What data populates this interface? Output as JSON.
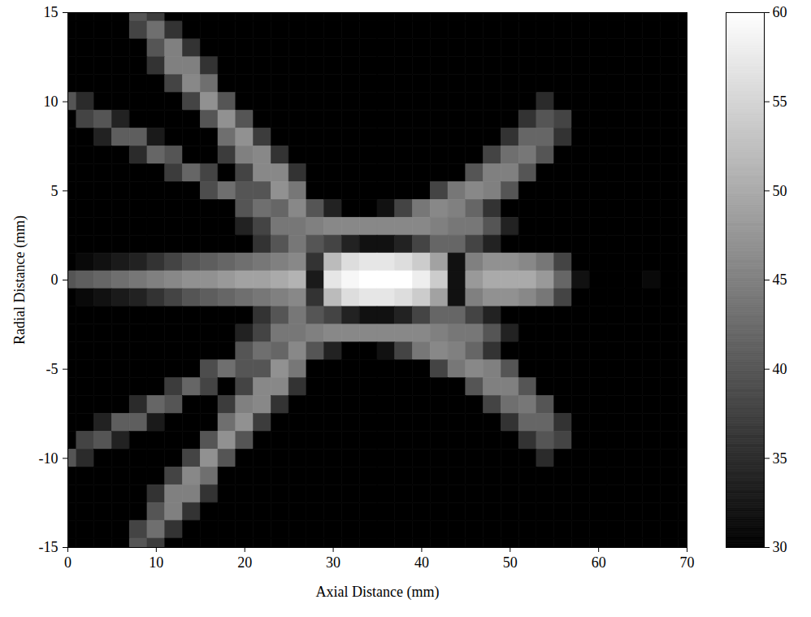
{
  "chart_data": {
    "type": "heatmap",
    "xlabel": "Axial Distance (mm)",
    "ylabel": "Radial Distance (mm)",
    "xlim": [
      0,
      70
    ],
    "ylim": [
      -15,
      15
    ],
    "xticks": [
      0,
      10,
      20,
      30,
      40,
      50,
      60,
      70
    ],
    "yticks": [
      -15,
      -10,
      -5,
      0,
      5,
      10,
      15
    ],
    "x": [
      0,
      2,
      4,
      6,
      8,
      10,
      12,
      14,
      16,
      18,
      20,
      22,
      24,
      26,
      28,
      30,
      32,
      34,
      36,
      38,
      40,
      42,
      44,
      46,
      48,
      50,
      52,
      54,
      56,
      58,
      60,
      62,
      64,
      66,
      68,
      70
    ],
    "y": [
      15,
      14,
      13,
      12,
      11,
      10,
      9,
      8,
      7,
      6,
      5,
      4,
      3,
      2,
      1,
      0,
      -1,
      -2,
      -3,
      -4,
      -5,
      -6,
      -7,
      -8,
      -9,
      -10,
      -11,
      -12,
      -13,
      -14,
      -15
    ],
    "z": [
      [
        30,
        30,
        30,
        30,
        40,
        37,
        30,
        30,
        30,
        30,
        30,
        30,
        30,
        30,
        30,
        30,
        30,
        30,
        30,
        30,
        30,
        30,
        30,
        30,
        30,
        30,
        30,
        30,
        30,
        30,
        30,
        30,
        30,
        30,
        30,
        30
      ],
      [
        30,
        30,
        30,
        30,
        38,
        43,
        36,
        30,
        30,
        30,
        30,
        30,
        30,
        30,
        30,
        30,
        30,
        30,
        30,
        30,
        30,
        30,
        30,
        30,
        30,
        30,
        30,
        30,
        30,
        30,
        30,
        30,
        30,
        30,
        30,
        30
      ],
      [
        30,
        30,
        30,
        30,
        30,
        40,
        45,
        36,
        30,
        30,
        30,
        30,
        30,
        30,
        30,
        30,
        30,
        30,
        30,
        30,
        30,
        30,
        30,
        30,
        30,
        30,
        30,
        30,
        30,
        30,
        30,
        30,
        30,
        30,
        30,
        30
      ],
      [
        30,
        30,
        30,
        30,
        30,
        36,
        45,
        45,
        36,
        30,
        30,
        30,
        30,
        30,
        30,
        30,
        30,
        30,
        30,
        30,
        30,
        30,
        30,
        30,
        30,
        30,
        30,
        30,
        30,
        30,
        30,
        30,
        30,
        30,
        30,
        30
      ],
      [
        30,
        30,
        30,
        30,
        30,
        30,
        38,
        46,
        43,
        30,
        30,
        30,
        30,
        30,
        30,
        30,
        30,
        30,
        30,
        30,
        30,
        30,
        30,
        30,
        30,
        30,
        30,
        30,
        30,
        30,
        30,
        30,
        30,
        30,
        30,
        30
      ],
      [
        40,
        35,
        30,
        30,
        30,
        30,
        30,
        38,
        47,
        40,
        30,
        30,
        30,
        30,
        30,
        30,
        30,
        30,
        30,
        30,
        30,
        30,
        30,
        30,
        30,
        30,
        30,
        35,
        30,
        30,
        30,
        30,
        30,
        30,
        30,
        30
      ],
      [
        30,
        38,
        40,
        34,
        30,
        30,
        30,
        30,
        40,
        47,
        40,
        30,
        30,
        30,
        30,
        30,
        30,
        30,
        30,
        30,
        30,
        30,
        30,
        30,
        30,
        30,
        36,
        40,
        38,
        30,
        30,
        30,
        30,
        30,
        30,
        30
      ],
      [
        30,
        30,
        34,
        41,
        41,
        33,
        30,
        30,
        30,
        43,
        47,
        37,
        30,
        30,
        30,
        30,
        30,
        30,
        30,
        30,
        30,
        30,
        30,
        30,
        30,
        36,
        42,
        42,
        36,
        30,
        30,
        30,
        30,
        30,
        30,
        30
      ],
      [
        30,
        30,
        30,
        30,
        35,
        42,
        40,
        30,
        30,
        37,
        45,
        46,
        36,
        30,
        30,
        30,
        30,
        30,
        30,
        30,
        30,
        30,
        30,
        30,
        38,
        43,
        44,
        40,
        30,
        30,
        30,
        30,
        30,
        30,
        30,
        30
      ],
      [
        30,
        30,
        30,
        30,
        30,
        30,
        37,
        42,
        38,
        30,
        38,
        46,
        46,
        36,
        30,
        30,
        30,
        30,
        30,
        30,
        30,
        30,
        30,
        40,
        45,
        45,
        40,
        30,
        30,
        30,
        30,
        30,
        30,
        30,
        30,
        30
      ],
      [
        30,
        30,
        30,
        30,
        30,
        30,
        30,
        30,
        39,
        43,
        40,
        40,
        47,
        44,
        30,
        30,
        30,
        30,
        30,
        30,
        30,
        38,
        44,
        46,
        45,
        40,
        30,
        30,
        30,
        30,
        30,
        30,
        30,
        30,
        30,
        30
      ],
      [
        30,
        30,
        30,
        30,
        30,
        30,
        30,
        30,
        30,
        30,
        40,
        43,
        42,
        46,
        40,
        34,
        30,
        30,
        32,
        38,
        44,
        46,
        45,
        42,
        36,
        30,
        30,
        30,
        30,
        30,
        30,
        30,
        30,
        30,
        30,
        30
      ],
      [
        30,
        30,
        30,
        30,
        30,
        30,
        30,
        30,
        30,
        30,
        34,
        38,
        44,
        44,
        45,
        46,
        46,
        46,
        46,
        46,
        46,
        45,
        44,
        44,
        40,
        34,
        30,
        30,
        30,
        30,
        30,
        30,
        30,
        30,
        30,
        30
      ],
      [
        30,
        30,
        30,
        30,
        30,
        30,
        30,
        30,
        30,
        30,
        30,
        36,
        40,
        44,
        40,
        38,
        34,
        32,
        32,
        34,
        38,
        42,
        42,
        38,
        34,
        30,
        30,
        30,
        30,
        30,
        30,
        30,
        30,
        30,
        30,
        30
      ],
      [
        30,
        31,
        32,
        33,
        34,
        36,
        38,
        40,
        41,
        42,
        43,
        44,
        45,
        46,
        36,
        52,
        56,
        57,
        57,
        56,
        54,
        49,
        32,
        45,
        47,
        47,
        46,
        44,
        38,
        30,
        30,
        30,
        30,
        30,
        30,
        30
      ],
      [
        40,
        41,
        42,
        43,
        44,
        45,
        46,
        47,
        47,
        48,
        49,
        49,
        50,
        51,
        33,
        57,
        59,
        60,
        60,
        60,
        58,
        54,
        32,
        48,
        50,
        50,
        50,
        48,
        42,
        32,
        30,
        30,
        30,
        31,
        30,
        30
      ],
      [
        30,
        31,
        32,
        33,
        34,
        36,
        38,
        40,
        41,
        42,
        43,
        44,
        45,
        46,
        36,
        52,
        56,
        57,
        57,
        56,
        54,
        49,
        32,
        45,
        47,
        47,
        46,
        44,
        38,
        30,
        30,
        30,
        30,
        30,
        30,
        30
      ],
      [
        30,
        30,
        30,
        30,
        30,
        30,
        30,
        30,
        30,
        30,
        30,
        36,
        40,
        44,
        40,
        38,
        34,
        32,
        32,
        34,
        38,
        42,
        42,
        38,
        34,
        30,
        30,
        30,
        30,
        30,
        30,
        30,
        30,
        30,
        30,
        30
      ],
      [
        30,
        30,
        30,
        30,
        30,
        30,
        30,
        30,
        30,
        30,
        34,
        38,
        44,
        44,
        45,
        46,
        46,
        46,
        46,
        46,
        46,
        45,
        44,
        44,
        40,
        34,
        30,
        30,
        30,
        30,
        30,
        30,
        30,
        30,
        30,
        30
      ],
      [
        30,
        30,
        30,
        30,
        30,
        30,
        30,
        30,
        30,
        30,
        40,
        43,
        42,
        46,
        40,
        34,
        30,
        30,
        32,
        38,
        44,
        46,
        45,
        42,
        36,
        30,
        30,
        30,
        30,
        30,
        30,
        30,
        30,
        30,
        30,
        30
      ],
      [
        30,
        30,
        30,
        30,
        30,
        30,
        30,
        30,
        39,
        43,
        40,
        40,
        47,
        44,
        30,
        30,
        30,
        30,
        30,
        30,
        30,
        38,
        44,
        46,
        45,
        40,
        30,
        30,
        30,
        30,
        30,
        30,
        30,
        30,
        30,
        30
      ],
      [
        30,
        30,
        30,
        30,
        30,
        30,
        37,
        42,
        38,
        30,
        38,
        46,
        46,
        36,
        30,
        30,
        30,
        30,
        30,
        30,
        30,
        30,
        30,
        40,
        45,
        45,
        40,
        30,
        30,
        30,
        30,
        30,
        30,
        30,
        30,
        30
      ],
      [
        30,
        30,
        30,
        30,
        35,
        42,
        40,
        30,
        30,
        37,
        45,
        46,
        36,
        30,
        30,
        30,
        30,
        30,
        30,
        30,
        30,
        30,
        30,
        30,
        38,
        43,
        44,
        40,
        30,
        30,
        30,
        30,
        30,
        30,
        30,
        30
      ],
      [
        30,
        30,
        34,
        41,
        41,
        33,
        30,
        30,
        30,
        43,
        47,
        37,
        30,
        30,
        30,
        30,
        30,
        30,
        30,
        30,
        30,
        30,
        30,
        30,
        30,
        36,
        42,
        42,
        36,
        30,
        30,
        30,
        30,
        30,
        30,
        30
      ],
      [
        30,
        38,
        40,
        34,
        30,
        30,
        30,
        30,
        40,
        47,
        40,
        30,
        30,
        30,
        30,
        30,
        30,
        30,
        30,
        30,
        30,
        30,
        30,
        30,
        30,
        30,
        36,
        40,
        38,
        30,
        30,
        30,
        30,
        30,
        30,
        30
      ],
      [
        40,
        35,
        30,
        30,
        30,
        30,
        30,
        38,
        47,
        40,
        30,
        30,
        30,
        30,
        30,
        30,
        30,
        30,
        30,
        30,
        30,
        30,
        30,
        30,
        30,
        30,
        30,
        35,
        30,
        30,
        30,
        30,
        30,
        30,
        30,
        30
      ],
      [
        30,
        30,
        30,
        30,
        30,
        30,
        38,
        46,
        43,
        30,
        30,
        30,
        30,
        30,
        30,
        30,
        30,
        30,
        30,
        30,
        30,
        30,
        30,
        30,
        30,
        30,
        30,
        30,
        30,
        30,
        30,
        30,
        30,
        30,
        30,
        30
      ],
      [
        30,
        30,
        30,
        30,
        30,
        36,
        45,
        45,
        36,
        30,
        30,
        30,
        30,
        30,
        30,
        30,
        30,
        30,
        30,
        30,
        30,
        30,
        30,
        30,
        30,
        30,
        30,
        30,
        30,
        30,
        30,
        30,
        30,
        30,
        30,
        30
      ],
      [
        30,
        30,
        30,
        30,
        30,
        40,
        45,
        36,
        30,
        30,
        30,
        30,
        30,
        30,
        30,
        30,
        30,
        30,
        30,
        30,
        30,
        30,
        30,
        30,
        30,
        30,
        30,
        30,
        30,
        30,
        30,
        30,
        30,
        30,
        30,
        30
      ],
      [
        30,
        30,
        30,
        30,
        38,
        43,
        36,
        30,
        30,
        30,
        30,
        30,
        30,
        30,
        30,
        30,
        30,
        30,
        30,
        30,
        30,
        30,
        30,
        30,
        30,
        30,
        30,
        30,
        30,
        30,
        30,
        30,
        30,
        30,
        30,
        30
      ],
      [
        30,
        30,
        30,
        30,
        40,
        37,
        30,
        30,
        30,
        30,
        30,
        30,
        30,
        30,
        30,
        30,
        30,
        30,
        30,
        30,
        30,
        30,
        30,
        30,
        30,
        30,
        30,
        30,
        30,
        30,
        30,
        30,
        30,
        30,
        30,
        30
      ]
    ],
    "colorbar": {
      "range": [
        30,
        60
      ],
      "ticks": [
        30,
        35,
        40,
        45,
        50,
        55,
        60
      ]
    }
  }
}
